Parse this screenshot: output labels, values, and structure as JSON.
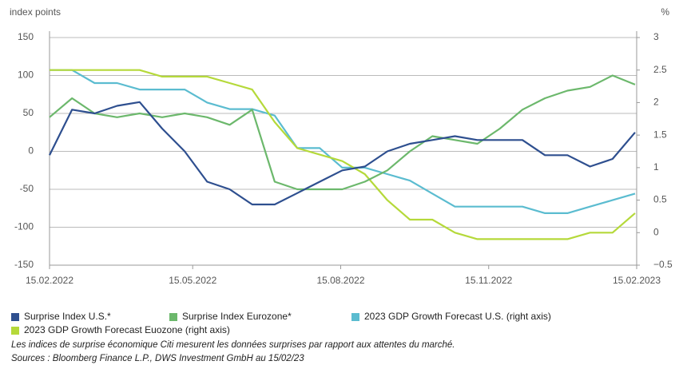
{
  "chart_data": {
    "type": "line",
    "y_label": "index points",
    "y2_label": "%",
    "x": [
      "2022-02-15",
      "2022-03-01",
      "2022-03-15",
      "2022-03-29",
      "2022-04-12",
      "2022-04-26",
      "2022-05-10",
      "2022-05-24",
      "2022-06-07",
      "2022-06-21",
      "2022-07-05",
      "2022-07-19",
      "2022-08-02",
      "2022-08-16",
      "2022-08-30",
      "2022-09-13",
      "2022-09-27",
      "2022-10-11",
      "2022-10-25",
      "2022-11-08",
      "2022-11-22",
      "2022-12-06",
      "2022-12-20",
      "2023-01-03",
      "2023-01-17",
      "2023-01-31",
      "2023-02-14"
    ],
    "xlim": [
      "2022-02-15",
      "2023-02-15"
    ],
    "xticks": [
      {
        "value": "2022-02-15",
        "label": "15.02.2022"
      },
      {
        "value": "2022-05-15",
        "label": "15.05.2022"
      },
      {
        "value": "2022-08-15",
        "label": "15.08.2022"
      },
      {
        "value": "2022-11-15",
        "label": "15.11.2022"
      },
      {
        "value": "2023-02-15",
        "label": "15.02.2023"
      }
    ],
    "ylim": [
      -150,
      150
    ],
    "yticks": [
      -150,
      -100,
      -50,
      0,
      50,
      100,
      150
    ],
    "y2lim": [
      -0.5,
      3
    ],
    "y2ticks": [
      {
        "value": -0.5,
        "label": "−0.5"
      },
      0,
      0.5,
      1,
      1.5,
      2,
      2.5,
      3
    ],
    "grid": true,
    "series": [
      {
        "name": "Surprise Index U.S.*",
        "color": "#2e4f8f",
        "values": [
          -5,
          55,
          50,
          60,
          65,
          30,
          0,
          -40,
          -50,
          -70,
          -70,
          -55,
          -40,
          -25,
          -20,
          0,
          10,
          15,
          20,
          15,
          15,
          15,
          -5,
          -5,
          -20,
          -10,
          25
        ]
      },
      {
        "name": "Surprise Index Eurozone*",
        "color": "#6cb86c",
        "values": [
          45,
          70,
          50,
          45,
          50,
          45,
          50,
          45,
          35,
          55,
          -40,
          -50,
          -50,
          -50,
          -40,
          -25,
          0,
          20,
          15,
          10,
          30,
          55,
          70,
          80,
          85,
          100,
          88
        ]
      },
      {
        "name": "2023 GDP Growth Forecast U.S. (right axis)",
        "color": "#5bbcd0",
        "axis": "y2",
        "values": [
          2.5,
          2.5,
          2.3,
          2.3,
          2.2,
          2.2,
          2.2,
          2.0,
          1.9,
          1.9,
          1.8,
          1.3,
          1.3,
          1.0,
          1.0,
          0.9,
          0.8,
          0.6,
          0.4,
          0.4,
          0.4,
          0.4,
          0.3,
          0.3,
          0.4,
          0.5,
          0.6
        ]
      },
      {
        "name": "2023 GDP Growth Forecast Euozone (right axis)",
        "color": "#b5d93a",
        "axis": "y2",
        "values": [
          2.5,
          2.5,
          2.5,
          2.5,
          2.5,
          2.4,
          2.4,
          2.4,
          2.3,
          2.2,
          1.7,
          1.3,
          1.2,
          1.1,
          0.9,
          0.5,
          0.2,
          0.2,
          0.0,
          -0.1,
          -0.1,
          -0.1,
          -0.1,
          -0.1,
          0.0,
          0.0,
          0.3
        ]
      }
    ],
    "notes": [
      "Les indices de surprise économique Citi mesurent les données surprises par rapport aux attentes du marché.",
      "Sources : Bloomberg Finance L.P., DWS Investment GmbH au 15/02/23"
    ]
  }
}
